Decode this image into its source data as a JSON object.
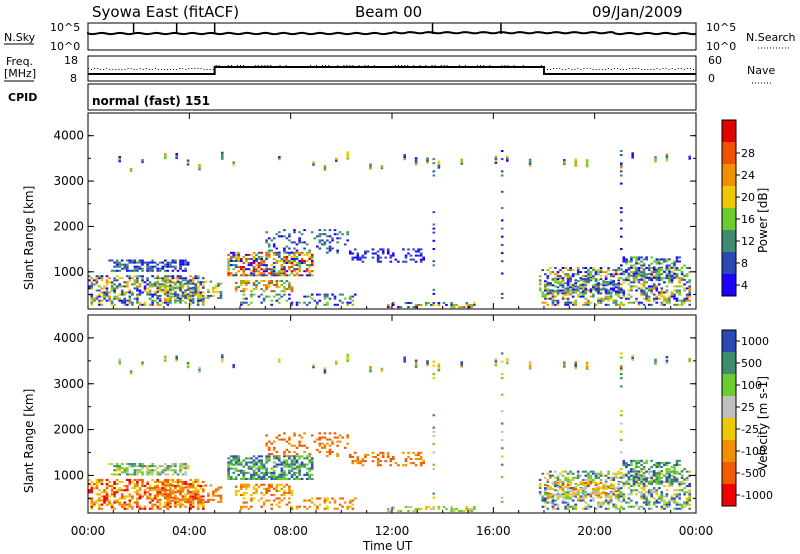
{
  "header": {
    "title": "Syowa East (fitACF)",
    "beam": "Beam 00",
    "date": "09/Jan/2009"
  },
  "strip_labels": {
    "nsky": "N.Sky",
    "nsky_top": "10^5",
    "nsky_bottom": "10^0",
    "nsearch": "N.Search",
    "nsearch_top": "10^5",
    "nsearch_bottom": "10^0",
    "freq_line1": "Freq.",
    "freq_line2": "[MHz]",
    "freq_top": "18",
    "freq_bottom": "8",
    "nave": "Nave",
    "nave_top": "60",
    "nave_bottom": "0",
    "cpid": "CPID",
    "mode": "normal (fast) 151"
  },
  "colors": {
    "power": [
      "#1e00ff",
      "#2a49b4",
      "#3c8c6e",
      "#6ccc2e",
      "#f0c800",
      "#f09000",
      "#f05000",
      "#e00000"
    ],
    "velocity": [
      "#f00000",
      "#f05a00",
      "#f09000",
      "#f0c800",
      "#c0c0c0",
      "#6ccc2e",
      "#3c8c6e",
      "#2a49b4"
    ]
  },
  "chart_data": [
    {
      "type": "heatmap",
      "quantity": "power",
      "ylabel": "Slant Range [km]",
      "colorbar_label": "Power [dB]",
      "colorbar_ticks": [
        "4",
        "8",
        "12",
        "16",
        "20",
        "24",
        "28"
      ],
      "yticks": [
        "1000",
        "2000",
        "3000",
        "4000"
      ],
      "ylim": [
        180,
        4500
      ],
      "xlim": [
        "00:00",
        "24:00"
      ]
    },
    {
      "type": "heatmap",
      "quantity": "velocity",
      "ylabel": "Slant Range [km]",
      "colorbar_label": "Velocity [m s-1]",
      "colorbar_ticks": [
        "-1000",
        "-500",
        "-100",
        "-25",
        "25",
        "100",
        "500",
        "1000"
      ],
      "yticks": [
        "1000",
        "2000",
        "3000",
        "4000"
      ],
      "ylim": [
        180,
        4500
      ],
      "xlim": [
        "00:00",
        "24:00"
      ],
      "xticks": [
        "00:00",
        "04:00",
        "08:00",
        "12:00",
        "16:00",
        "20:00",
        "00:00"
      ],
      "xlabel": "Time UT"
    }
  ]
}
